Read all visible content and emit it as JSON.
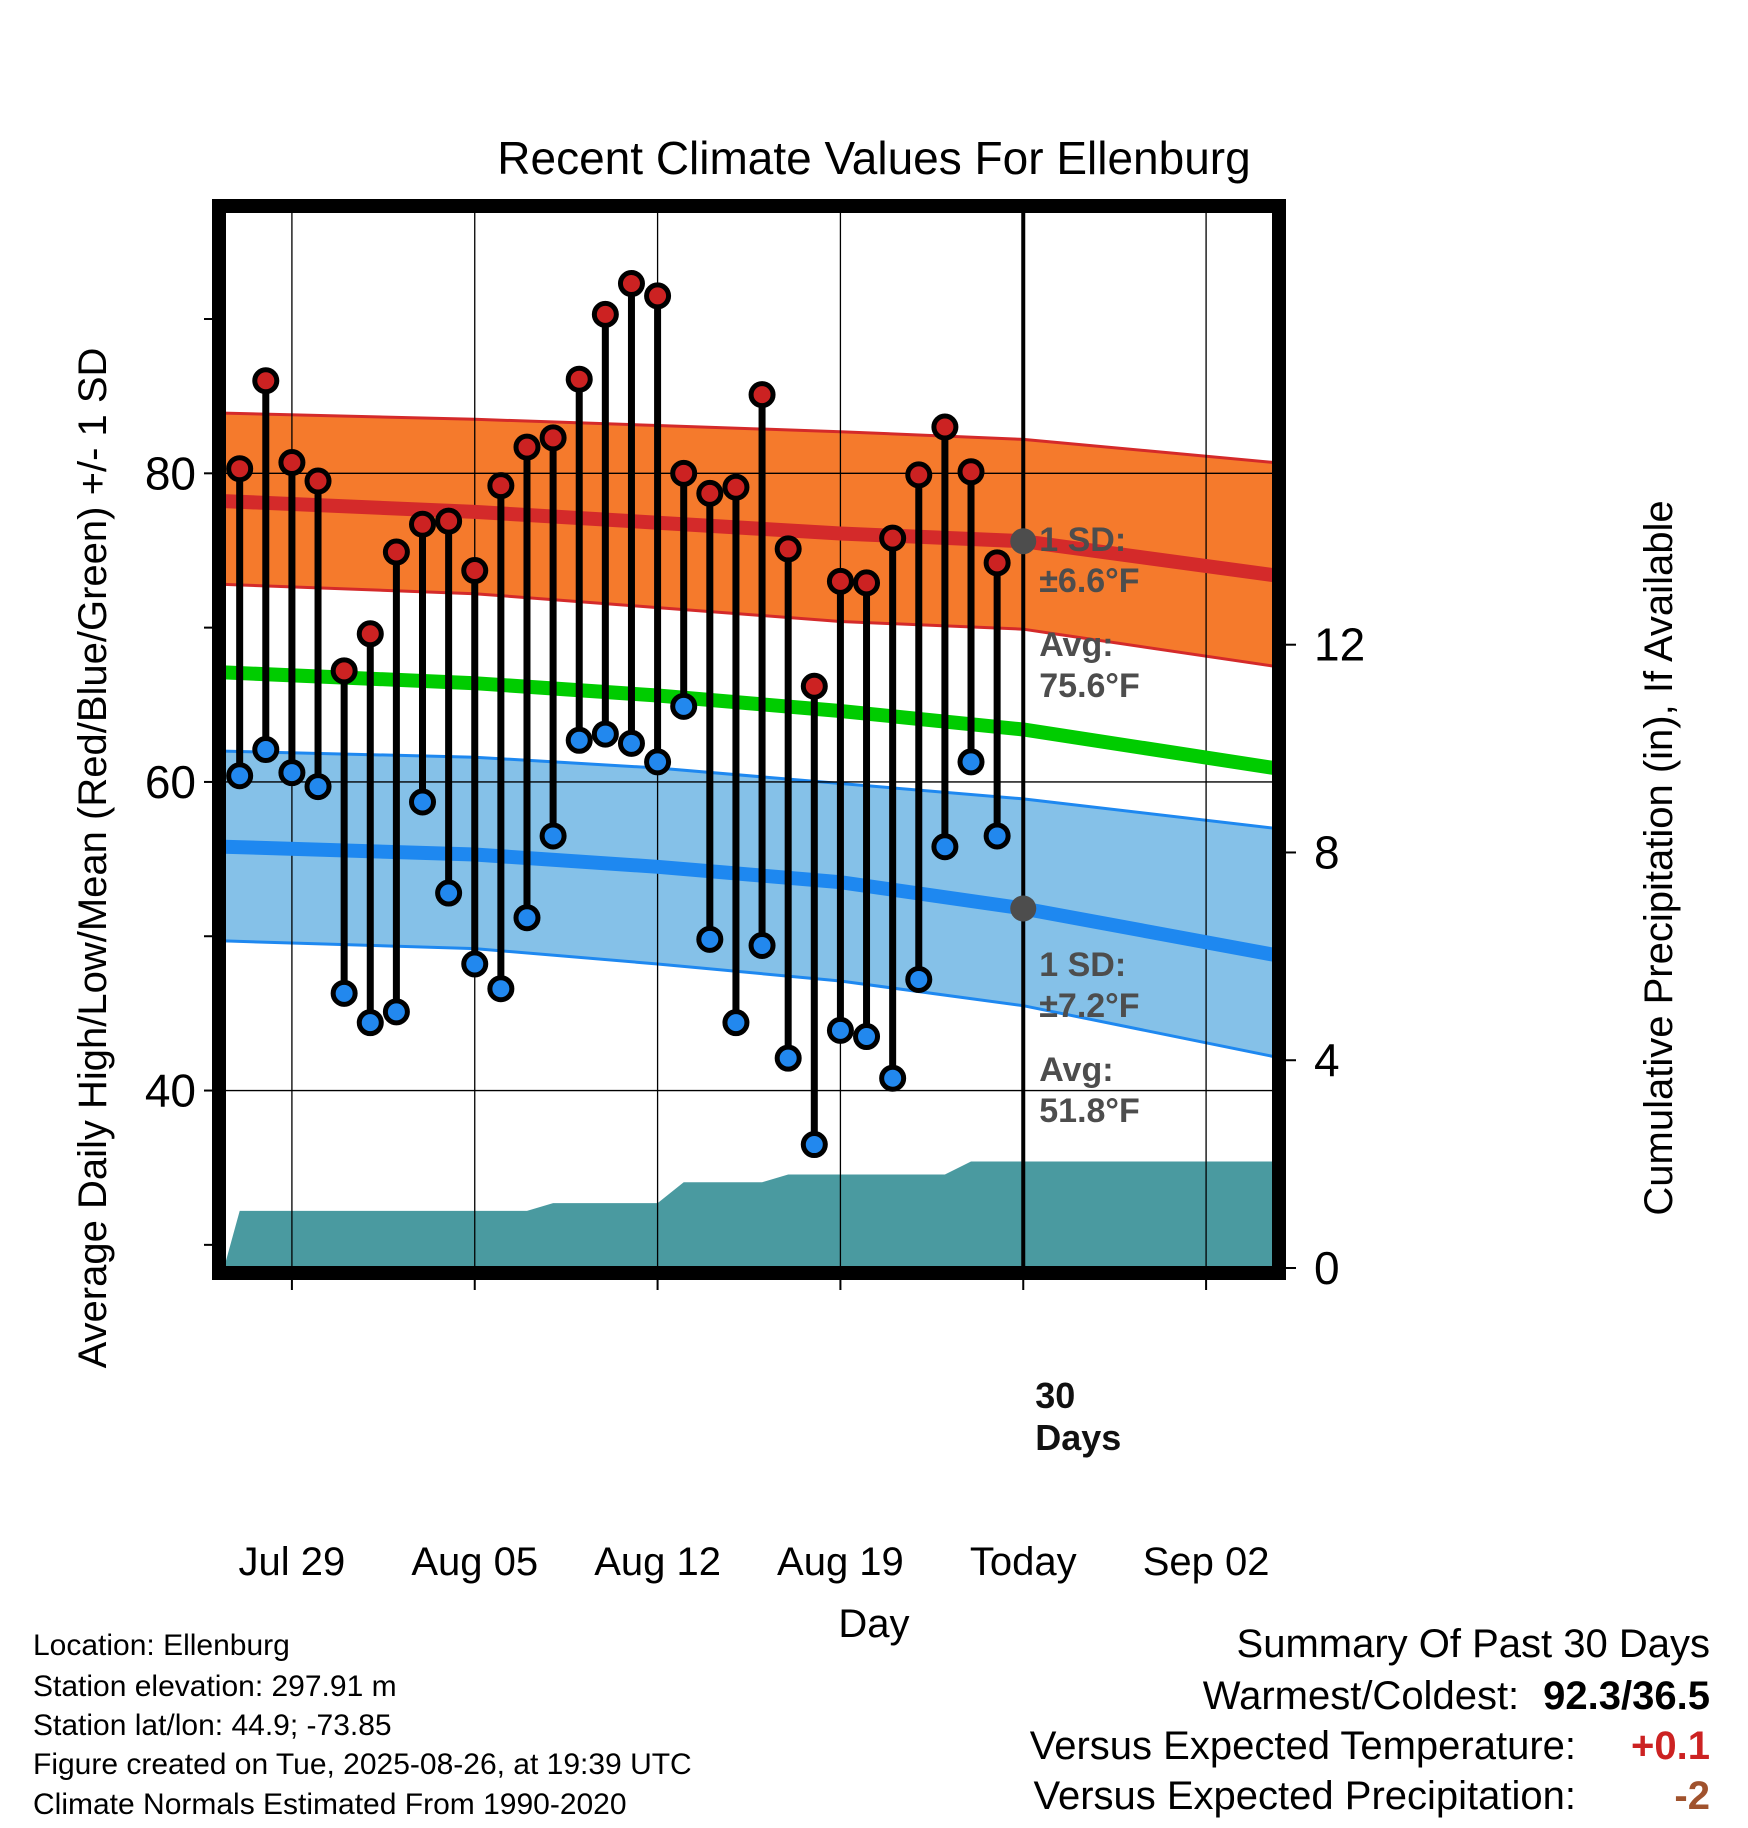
{
  "chart_data": {
    "type": "line",
    "title": "Recent Climate Values For Ellenburg",
    "xlabel": "Day",
    "ylabel": "Average Daily High/Low/Mean (Red/Blue/Green) +/- 1 SD",
    "y2label": "Cumulative Precipitation (in), If Available",
    "x_ticks": [
      "Jul 29",
      "Aug 05",
      "Aug 12",
      "Aug 19",
      "Today",
      "Sep 02"
    ],
    "x_tick_days": [
      0,
      7,
      14,
      21,
      28,
      35
    ],
    "xlim_days": [
      -2.6,
      37.6
    ],
    "ylim": [
      28.5,
      97
    ],
    "y_ticks": [
      40,
      60,
      80
    ],
    "y_minor_ticks": [
      30,
      50,
      70,
      90
    ],
    "y2lim": [
      0,
      20.35
    ],
    "y2_ticks": [
      0,
      4,
      8,
      12
    ],
    "grid": true,
    "series": [
      {
        "name": "High",
        "color": "#cc2222",
        "days": [
          -2,
          -1,
          0,
          1,
          2,
          3,
          4,
          5,
          6,
          7,
          8,
          9,
          10,
          11,
          12,
          13,
          14,
          15,
          16,
          17,
          18,
          19,
          20,
          21,
          22,
          23,
          24,
          25,
          26,
          27
        ],
        "values": [
          80.3,
          86.0,
          80.7,
          79.5,
          67.2,
          69.6,
          74.9,
          76.7,
          76.9,
          73.7,
          79.2,
          81.7,
          82.3,
          86.1,
          90.3,
          92.3,
          91.5,
          80.0,
          78.7,
          79.1,
          85.1,
          75.1,
          66.2,
          73.0,
          72.9,
          75.8,
          79.9,
          83.0,
          80.1,
          74.2
        ]
      },
      {
        "name": "Low",
        "color": "#2288ee",
        "days": [
          -2,
          -1,
          0,
          1,
          2,
          3,
          4,
          5,
          6,
          7,
          8,
          9,
          10,
          11,
          12,
          13,
          14,
          15,
          16,
          17,
          18,
          19,
          20,
          21,
          22,
          23,
          24,
          25,
          26,
          27
        ],
        "values": [
          60.4,
          62.1,
          60.6,
          59.7,
          46.3,
          44.4,
          45.1,
          58.7,
          52.8,
          48.2,
          46.6,
          51.2,
          56.5,
          62.7,
          63.1,
          62.5,
          61.3,
          64.9,
          49.8,
          44.4,
          49.4,
          42.1,
          36.5,
          43.9,
          43.5,
          40.8,
          47.2,
          55.8,
          61.3,
          56.5
        ]
      }
    ],
    "normals": {
      "days": [
        -2.6,
        7,
        14,
        21,
        28,
        37.6
      ],
      "high_avg": [
        78.2,
        77.5,
        76.8,
        76.1,
        75.6,
        73.4
      ],
      "high_sd_upper": [
        83.9,
        83.5,
        83.1,
        82.7,
        82.2,
        80.7
      ],
      "high_sd_lower": [
        72.8,
        72.2,
        71.3,
        70.4,
        69.9,
        67.5
      ],
      "mean": [
        67.1,
        66.4,
        65.6,
        64.6,
        63.4,
        60.9
      ],
      "low_avg": [
        55.8,
        55.3,
        54.5,
        53.5,
        51.8,
        48.8
      ],
      "low_sd_upper": [
        62.0,
        61.6,
        60.9,
        59.9,
        58.9,
        57.0
      ],
      "low_sd_lower": [
        49.7,
        49.2,
        48.2,
        47.1,
        45.5,
        42.2
      ]
    },
    "precipitation": {
      "days": [
        -2.6,
        -2,
        9,
        10,
        14,
        15,
        18,
        19,
        25,
        26,
        37.6
      ],
      "values": [
        0,
        1.1,
        1.1,
        1.25,
        1.25,
        1.65,
        1.65,
        1.8,
        1.8,
        2.05,
        2.05
      ]
    },
    "annotations": {
      "high_sd_label": "1 SD:",
      "high_sd_value": "±6.6°F",
      "high_avg_label": "Avg:",
      "high_avg_value": "75.6°F",
      "high_today": 75.6,
      "low_sd_label": "1 SD:",
      "low_sd_value": "±7.2°F",
      "low_avg_label": "Avg:",
      "low_avg_value": "51.8°F",
      "low_today": 51.8,
      "days_label": "30",
      "days_label2": "Days"
    },
    "colors": {
      "high_band": "#f57a2c",
      "high_line": "#d42a2a",
      "low_band": "#85c1e8",
      "low_line": "#1e88f0",
      "mean_line": "#00cc00",
      "precip": "#4a9aa0",
      "annotation": "#4d4d4d"
    }
  },
  "info": {
    "location": "Location: Ellenburg",
    "elevation": "Station elevation: 297.91 m",
    "latlon": "Station lat/lon: 44.9; -73.85",
    "created": "Figure created on Tue, 2025-08-26, at 19:39 UTC",
    "normals": "Climate Normals Estimated From 1990-2020"
  },
  "summary": {
    "heading": "Summary Of Past 30 Days",
    "warm_cold_label": "Warmest/Coldest:",
    "warm_cold_value": "92.3/36.5",
    "temp_label": "Versus Expected Temperature:",
    "temp_value": "+0.1",
    "temp_color": "#cc2222",
    "precip_label": "Versus Expected Precipitation:",
    "precip_value": "-2",
    "precip_color": "#a0522d"
  }
}
